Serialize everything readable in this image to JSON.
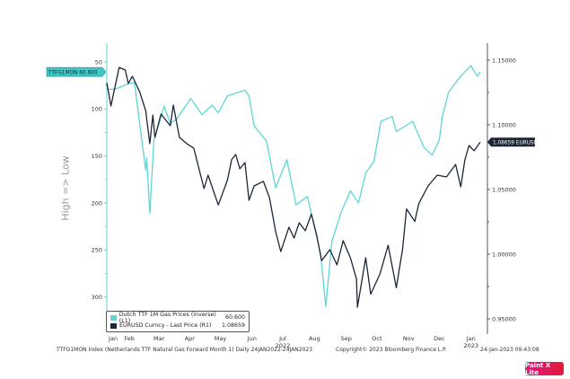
{
  "chart_data": {
    "type": "line",
    "ylabel_left": "High => Low",
    "left_axis": {
      "ticks": [
        50,
        100,
        150,
        200,
        250,
        300
      ],
      "range": [
        50,
        300
      ],
      "inverted": true
    },
    "right_axis": {
      "ticks": [
        "1.15000",
        "1.10000",
        "1.05000",
        "1.00000",
        "0.95000"
      ],
      "range": [
        0.95,
        1.15
      ]
    },
    "x_range": [
      "2022-01-24",
      "2023-01-24"
    ],
    "months": [
      {
        "label": "Jan",
        "date": "2022-01-26"
      },
      {
        "label": "Feb",
        "date": "2022-02-15"
      },
      {
        "label": "Mar",
        "date": "2022-03-16"
      },
      {
        "label": "Apr",
        "date": "2022-04-15"
      },
      {
        "label": "May",
        "date": "2022-05-15"
      },
      {
        "label": "Jun",
        "date": "2022-06-15"
      },
      {
        "label": "Jul",
        "date": "2022-07-15",
        "year": "2022"
      },
      {
        "label": "Aug",
        "date": "2022-08-15"
      },
      {
        "label": "Sep",
        "date": "2022-09-15"
      },
      {
        "label": "Oct",
        "date": "2022-10-15"
      },
      {
        "label": "Nov",
        "date": "2022-11-15"
      },
      {
        "label": "Dec",
        "date": "2022-12-15"
      },
      {
        "label": "Jan",
        "date": "2023-01-15",
        "year": "2023"
      }
    ],
    "series": [
      {
        "name": "Dutch TTF 1M Gas Prices (inverse) (L1)",
        "last": "60.600",
        "axis": "left",
        "color": "#5ed6d6",
        "tag": "TTFG1MON 60.600",
        "points": [
          [
            "2022-01-24",
            79
          ],
          [
            "2022-02-01",
            79
          ],
          [
            "2022-02-14",
            73
          ],
          [
            "2022-02-20",
            72
          ],
          [
            "2022-02-25",
            115
          ],
          [
            "2022-03-03",
            165
          ],
          [
            "2022-03-04",
            152
          ],
          [
            "2022-03-07",
            211
          ],
          [
            "2022-03-11",
            134
          ],
          [
            "2022-03-21",
            97
          ],
          [
            "2022-03-27",
            115
          ],
          [
            "2022-04-02",
            111
          ],
          [
            "2022-04-16",
            89
          ],
          [
            "2022-04-27",
            106
          ],
          [
            "2022-05-07",
            96
          ],
          [
            "2022-05-13",
            104
          ],
          [
            "2022-05-22",
            86
          ],
          [
            "2022-06-08",
            80
          ],
          [
            "2022-06-12",
            86
          ],
          [
            "2022-06-17",
            118
          ],
          [
            "2022-06-29",
            134
          ],
          [
            "2022-07-08",
            184
          ],
          [
            "2022-07-19",
            154
          ],
          [
            "2022-07-28",
            202
          ],
          [
            "2022-08-08",
            193
          ],
          [
            "2022-08-21",
            254
          ],
          [
            "2022-08-26",
            310
          ],
          [
            "2022-09-01",
            241
          ],
          [
            "2022-09-10",
            210
          ],
          [
            "2022-09-19",
            187
          ],
          [
            "2022-09-27",
            200
          ],
          [
            "2022-10-04",
            168
          ],
          [
            "2022-10-12",
            156
          ],
          [
            "2022-10-19",
            113
          ],
          [
            "2022-10-30",
            108
          ],
          [
            "2022-11-03",
            124
          ],
          [
            "2022-11-19",
            113
          ],
          [
            "2022-11-30",
            141
          ],
          [
            "2022-12-08",
            149
          ],
          [
            "2022-12-15",
            133
          ],
          [
            "2022-12-18",
            108
          ],
          [
            "2022-12-24",
            82
          ],
          [
            "2023-01-05",
            65
          ],
          [
            "2023-01-15",
            54
          ],
          [
            "2023-01-21",
            65
          ],
          [
            "2023-01-24",
            60.6
          ]
        ]
      },
      {
        "name": "EURUSD Curncy - Last Price (R1)",
        "last": "1.08659",
        "axis": "right",
        "color": "#1c2636",
        "tag": "1.08659 EURUSD",
        "points": [
          [
            "2022-01-24",
            1.1326
          ],
          [
            "2022-01-28",
            1.1146
          ],
          [
            "2022-02-05",
            1.1444
          ],
          [
            "2022-02-11",
            1.1424
          ],
          [
            "2022-02-14",
            1.132
          ],
          [
            "2022-02-18",
            1.1375
          ],
          [
            "2022-02-25",
            1.1257
          ],
          [
            "2022-03-03",
            1.111
          ],
          [
            "2022-03-07",
            1.0854
          ],
          [
            "2022-03-10",
            1.1076
          ],
          [
            "2022-03-12",
            1.0903
          ],
          [
            "2022-03-18",
            1.1083
          ],
          [
            "2022-03-27",
            1.0993
          ],
          [
            "2022-03-30",
            1.1153
          ],
          [
            "2022-04-05",
            1.0903
          ],
          [
            "2022-04-13",
            1.085
          ],
          [
            "2022-04-19",
            1.0819
          ],
          [
            "2022-04-29",
            1.0507
          ],
          [
            "2022-05-03",
            1.0611
          ],
          [
            "2022-05-13",
            1.038
          ],
          [
            "2022-05-22",
            1.0576
          ],
          [
            "2022-05-26",
            1.073
          ],
          [
            "2022-05-30",
            1.0771
          ],
          [
            "2022-06-03",
            1.066
          ],
          [
            "2022-06-08",
            1.0708
          ],
          [
            "2022-06-12",
            1.0417
          ],
          [
            "2022-06-17",
            1.0528
          ],
          [
            "2022-06-26",
            1.0563
          ],
          [
            "2022-07-02",
            1.0437
          ],
          [
            "2022-07-08",
            1.0174
          ],
          [
            "2022-07-13",
            1.002
          ],
          [
            "2022-07-21",
            1.0208
          ],
          [
            "2022-07-26",
            1.0125
          ],
          [
            "2022-07-31",
            1.0243
          ],
          [
            "2022-08-06",
            1.0181
          ],
          [
            "2022-08-12",
            1.031
          ],
          [
            "2022-08-17",
            1.0153
          ],
          [
            "2022-08-22",
            0.995
          ],
          [
            "2022-08-30",
            1.0035
          ],
          [
            "2022-09-06",
            0.9917
          ],
          [
            "2022-09-12",
            1.0104
          ],
          [
            "2022-09-19",
            0.9972
          ],
          [
            "2022-09-25",
            0.981
          ],
          [
            "2022-09-26",
            0.959
          ],
          [
            "2022-10-04",
            0.9972
          ],
          [
            "2022-10-09",
            0.969
          ],
          [
            "2022-10-18",
            0.9847
          ],
          [
            "2022-10-26",
            1.0069
          ],
          [
            "2022-11-03",
            0.974
          ],
          [
            "2022-11-09",
            1.0035
          ],
          [
            "2022-11-13",
            1.035
          ],
          [
            "2022-11-21",
            1.0253
          ],
          [
            "2022-11-25",
            1.0392
          ],
          [
            "2022-12-04",
            1.0528
          ],
          [
            "2022-12-13",
            1.0611
          ],
          [
            "2022-12-22",
            1.0597
          ],
          [
            "2022-12-31",
            1.0694
          ],
          [
            "2023-01-05",
            1.0521
          ],
          [
            "2023-01-09",
            1.073
          ],
          [
            "2023-01-13",
            1.084
          ],
          [
            "2023-01-18",
            1.0799
          ],
          [
            "2023-01-24",
            1.0866
          ]
        ]
      }
    ],
    "legend_placement": "bottom-left",
    "grid": false
  },
  "footer": {
    "source": "TTFG1MON Index (Netherlands TTF Natural Gas Forward Month 1)  Daily 24JAN2022-24JAN2023",
    "copyright": "Copyright© 2023 Bloomberg Finance L.P.",
    "timestamp": "24-Jan-2023 09:43:08"
  },
  "watermark": "Paint X Lite"
}
